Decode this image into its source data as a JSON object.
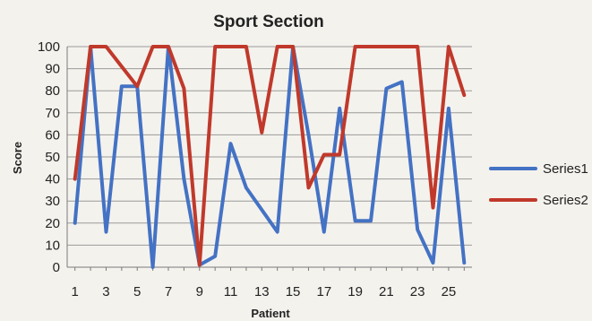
{
  "chart_data": {
    "type": "line",
    "title": "Sport Section",
    "xlabel": "Patient",
    "ylabel": "Score",
    "ylim": [
      0,
      100
    ],
    "yticks": [
      0,
      10,
      20,
      30,
      40,
      50,
      60,
      70,
      80,
      90,
      100
    ],
    "x": [
      1,
      2,
      3,
      4,
      5,
      6,
      7,
      8,
      9,
      10,
      11,
      12,
      13,
      14,
      15,
      16,
      17,
      18,
      19,
      20,
      21,
      22,
      23,
      24,
      25,
      26
    ],
    "xtick_labels": [
      "1",
      "3",
      "5",
      "7",
      "9",
      "11",
      "13",
      "15",
      "17",
      "19",
      "21",
      "23",
      "25"
    ],
    "grid": true,
    "legend": "right",
    "series": [
      {
        "name": "Series1",
        "color": "#4472c4",
        "values": [
          20,
          100,
          16,
          82,
          82,
          0,
          100,
          40,
          1,
          5,
          56,
          36,
          26,
          16,
          100,
          60,
          16,
          72,
          21,
          21,
          81,
          84,
          17,
          2,
          72,
          2
        ]
      },
      {
        "name": "Series2",
        "color": "#c0392b",
        "values": [
          40,
          100,
          100,
          91,
          82,
          100,
          100,
          81,
          1,
          100,
          100,
          100,
          61,
          100,
          100,
          36,
          51,
          51,
          100,
          100,
          100,
          100,
          100,
          27,
          100,
          78
        ]
      }
    ]
  }
}
